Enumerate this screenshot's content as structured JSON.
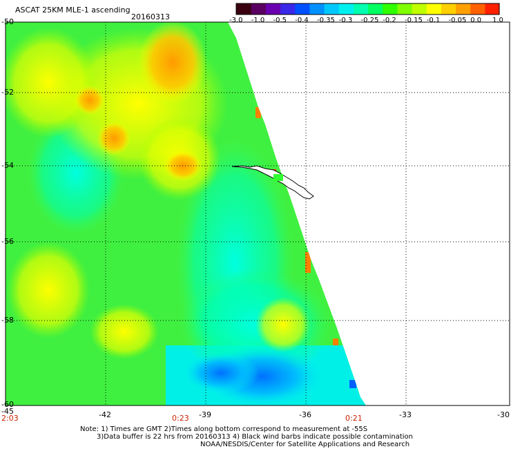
{
  "header": {
    "product": "ASCAT 25KM MLE-1 ascending",
    "date": "20160313"
  },
  "colorbar": {
    "colors": [
      "#3a0010",
      "#5a0060",
      "#6a00b0",
      "#3a28e8",
      "#0050ff",
      "#0090ff",
      "#00c8ff",
      "#00f0f0",
      "#00ffb0",
      "#00ff60",
      "#30ff00",
      "#80ff00",
      "#c0ff00",
      "#ffff00",
      "#ffd000",
      "#ffa000",
      "#ff6000",
      "#ff2000"
    ],
    "labels": [
      "-3.0",
      "-1.0",
      "-0.5",
      "-0.4",
      "-0.35",
      "-0.3",
      "-0.25",
      "-0.2",
      "-0.15",
      "-0.1",
      "-0.05",
      "0.0",
      "1.0"
    ]
  },
  "axes": {
    "lat_labels": [
      "-50",
      "-52",
      "-54",
      "-56",
      "-58",
      "-60"
    ],
    "lon_labels": [
      "-45",
      "-42",
      "-39",
      "-36",
      "-33",
      "-30"
    ]
  },
  "times": {
    "t1": "2:03",
    "t2": "0:23",
    "t3": "0:21"
  },
  "notes": {
    "line1": "Note: 1) Times are GMT 2)Times along bottom correspond to measurement at -55S",
    "line2": "3)Data buffer is 22 hrs from 20160313 4) Black wind barbs indicate possible contamination",
    "line3": "NOAA/NESDIS/Center for Satellite Applications and Research"
  }
}
